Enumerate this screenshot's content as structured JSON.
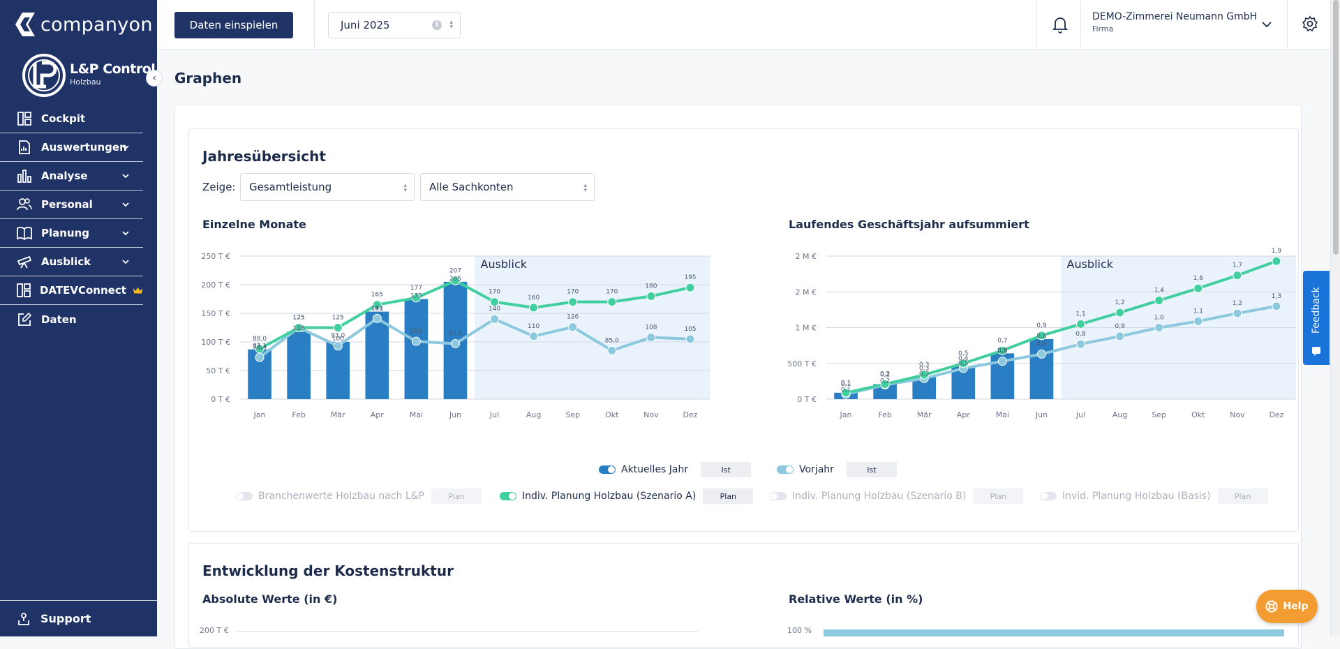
{
  "sidebar": {
    "brand": "companyon",
    "product_title": "L&P Control",
    "product_sub": "Holzbau",
    "items": [
      {
        "label": "Cockpit",
        "icon": "dashboard-icon",
        "chevron": false
      },
      {
        "label": "Auswertungen",
        "icon": "report-icon",
        "chevron": true
      },
      {
        "label": "Analyse",
        "icon": "bar-chart-icon",
        "chevron": true
      },
      {
        "label": "Personal",
        "icon": "people-icon",
        "chevron": true
      },
      {
        "label": "Planung",
        "icon": "book-icon",
        "chevron": true
      },
      {
        "label": "Ausblick",
        "icon": "telescope-icon",
        "chevron": true
      },
      {
        "label": "DATEVConnect",
        "icon": "dashboard-icon",
        "chevron": false,
        "badge": "crown-icon"
      },
      {
        "label": "Daten",
        "icon": "edit-icon",
        "chevron": false
      }
    ],
    "support_label": "Support"
  },
  "topbar": {
    "import_button": "Daten einspielen",
    "month": "Juni 2025",
    "company_name": "DEMO-Zimmerei Neumann GmbH",
    "company_sub": "Firma"
  },
  "page": {
    "title": "Graphen",
    "section1_title": "Jahresübersicht",
    "zeige_label": "Zeige:",
    "select_measure": "Gesamtleistung",
    "select_accounts": "Alle Sachkonten",
    "section2_title": "Entwicklung der Kostenstruktur",
    "abs_title": "Absolute Werte (in €)",
    "rel_title": "Relative Werte (in %)",
    "abs_tick_top": "200 T €",
    "rel_tick_top": "100 %"
  },
  "legend": {
    "row1": [
      {
        "label": "Aktuelles Jahr",
        "tag": "Ist",
        "color": "#2a7fc4",
        "enabled": true
      },
      {
        "label": "Vorjahr",
        "tag": "Ist",
        "color": "#7fc3db",
        "enabled": true
      }
    ],
    "row2": [
      {
        "label": "Branchenwerte Holzbau nach L&P",
        "tag": "Plan",
        "enabled": false
      },
      {
        "label": "Indiv. Planung Holzbau (Szenario A)",
        "tag": "Plan",
        "color": "#3fc99a",
        "enabled": true
      },
      {
        "label": "Indiv. Planung Holzbau (Szenario B)",
        "tag": "Plan",
        "enabled": false
      },
      {
        "label": "Invid. Planung Holzbau (Basis)",
        "tag": "Plan",
        "enabled": false
      }
    ]
  },
  "feedback_label": "Feedback",
  "help_label": "Help",
  "chart_data": [
    {
      "type": "bar",
      "title": "Einzelne Monate",
      "categories": [
        "Jan",
        "Feb",
        "Mär",
        "Apr",
        "Mai",
        "Jun",
        "Jul",
        "Aug",
        "Sep",
        "Okt",
        "Nov",
        "Dez"
      ],
      "y_ticks": [
        "0 T €",
        "50 T €",
        "100 T €",
        "150 T €",
        "200 T €",
        "250 T €"
      ],
      "ylim": [
        0,
        250
      ],
      "forecast_label": "Ausblick",
      "forecast_from": "Jul",
      "series": [
        {
          "name": "Aktuelles Jahr",
          "kind": "bar",
          "color": "#2a7fc4",
          "values": [
            87,
            118,
            100,
            153,
            175,
            205,
            null,
            null,
            null,
            null,
            null,
            null
          ],
          "labels": [
            "87,1",
            "118",
            "100",
            "153",
            "175",
            "205",
            "",
            "",
            "",
            "",
            "",
            ""
          ]
        },
        {
          "name": "Vorjahr",
          "kind": "line",
          "color": "#8cc9df",
          "values": [
            73,
            125,
            93,
            141,
            101,
            97,
            140,
            110,
            126,
            85,
            108,
            105
          ],
          "labels": [
            "73,4",
            "125",
            "93,0",
            "141",
            "101",
            "97,0",
            "140",
            "110",
            "126",
            "85,0",
            "108",
            "105"
          ]
        },
        {
          "name": "Indiv. Planung Holzbau (Szenario A)",
          "kind": "line",
          "color": "#42cfa0",
          "values": [
            88,
            125,
            125,
            165,
            177,
            207,
            170,
            160,
            170,
            170,
            180,
            195
          ],
          "labels": [
            "88,0",
            "125",
            "125",
            "165",
            "177",
            "207",
            "170",
            "160",
            "170",
            "170",
            "180",
            "195"
          ]
        }
      ]
    },
    {
      "type": "bar",
      "title": "Laufendes Geschäftsjahr aufsummiert",
      "categories": [
        "Jan",
        "Feb",
        "Mär",
        "Apr",
        "Mai",
        "Jun",
        "Jul",
        "Aug",
        "Sep",
        "Okt",
        "Nov",
        "Dez"
      ],
      "y_ticks": [
        "0 T €",
        "500 T €",
        "1 M €",
        "2 M €",
        "2 M €"
      ],
      "ylim": [
        0,
        2
      ],
      "forecast_label": "Ausblick",
      "forecast_from": "Jul",
      "series": [
        {
          "name": "Aktuelles Jahr",
          "kind": "bar",
          "color": "#2a7fc4",
          "values": [
            0.09,
            0.21,
            0.31,
            0.46,
            0.64,
            0.84,
            null,
            null,
            null,
            null,
            null,
            null
          ],
          "labels": [
            "0,1",
            "0,2",
            "0,3",
            "0,5",
            "0,6",
            "0,8",
            "",
            "",
            "",
            "",
            "",
            ""
          ]
        },
        {
          "name": "Vorjahr",
          "kind": "line",
          "color": "#8cc9df",
          "values": [
            0.07,
            0.2,
            0.29,
            0.43,
            0.53,
            0.63,
            0.77,
            0.88,
            1.0,
            1.09,
            1.2,
            1.3
          ],
          "labels": [
            "0,1",
            "0,2",
            "0,3",
            "0,4",
            "0,5",
            "0,6",
            "0,8",
            "0,9",
            "1,0",
            "1,1",
            "1,2",
            "1,3"
          ]
        },
        {
          "name": "Indiv. Planung Holzbau (Szenario A)",
          "kind": "line",
          "color": "#42cfa0",
          "values": [
            0.09,
            0.21,
            0.34,
            0.5,
            0.68,
            0.89,
            1.05,
            1.21,
            1.38,
            1.55,
            1.73,
            1.93
          ],
          "labels": [
            "0,1",
            "0,2",
            "0,3",
            "0,5",
            "0,7",
            "0,9",
            "1,1",
            "1,2",
            "1,4",
            "1,6",
            "1,7",
            "1,9"
          ]
        }
      ]
    }
  ]
}
